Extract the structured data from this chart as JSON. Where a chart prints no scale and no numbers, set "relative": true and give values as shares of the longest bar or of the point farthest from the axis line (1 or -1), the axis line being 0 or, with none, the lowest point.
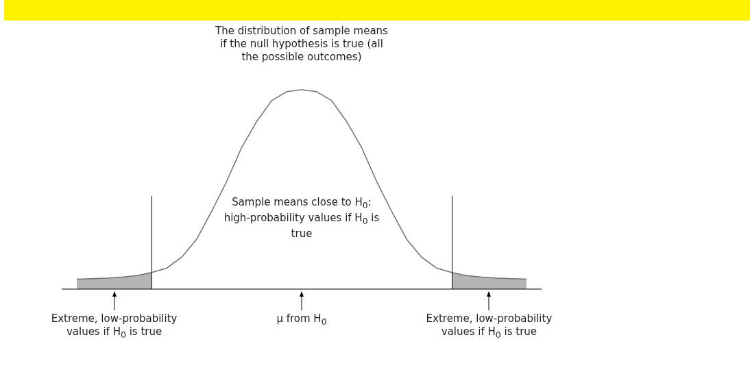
{
  "chart_data": {
    "type": "line",
    "relative": true,
    "legend": false,
    "marker": "none",
    "line_style": "solid",
    "title": "The distribution of sample means if the null hypothesis is true (all the possible outcomes)",
    "categories": [
      null,
      null,
      null,
      null,
      null,
      null,
      null,
      null,
      null,
      null,
      null,
      null,
      null,
      null,
      null,
      null,
      null,
      null,
      null,
      null,
      null,
      null,
      null,
      null,
      null,
      null,
      null,
      null,
      null,
      null,
      null,
      null,
      null
    ],
    "series": [
      {
        "color": "#707070",
        "values": [
          null,
          0.05,
          0.052,
          0.055,
          0.06,
          0.068,
          0.083,
          0.105,
          0.16,
          0.25,
          0.39,
          0.54,
          0.71,
          0.84,
          0.945,
          0.99,
          1,
          0.99,
          0.945,
          0.84,
          0.71,
          0.54,
          0.39,
          0.25,
          0.16,
          0.105,
          0.083,
          0.068,
          0.06,
          0.055,
          0.052,
          0.05,
          null
        ]
      },
      {
        "type": "area",
        "color": "#b5b5b5",
        "values": [
          null,
          0.05,
          0.052,
          0.055,
          0.06,
          0.068,
          0.083,
          null,
          null,
          null,
          null,
          null,
          null,
          null,
          null,
          null,
          null,
          null,
          null,
          null,
          null,
          null,
          null,
          null,
          null,
          null,
          null,
          null,
          null,
          null,
          null,
          null,
          null
        ]
      },
      {
        "type": "area",
        "color": "#b5b5b5",
        "values": [
          null,
          null,
          null,
          null,
          null,
          null,
          null,
          null,
          null,
          null,
          null,
          null,
          null,
          null,
          null,
          null,
          null,
          null,
          null,
          null,
          null,
          null,
          null,
          null,
          null,
          null,
          0.083,
          0.068,
          0.06,
          0.055,
          0.052,
          0.05,
          null
        ]
      }
    ],
    "annotations": [
      "Sample means close to H$_{0}$: high-probability values if H$_{0}$ is true",
      "Extreme, low-probability values if H$_{0}$ is true",
      "μ from H$_{0}$",
      "Extreme, low-probability values if H$_{0}$ is true"
    ]
  }
}
